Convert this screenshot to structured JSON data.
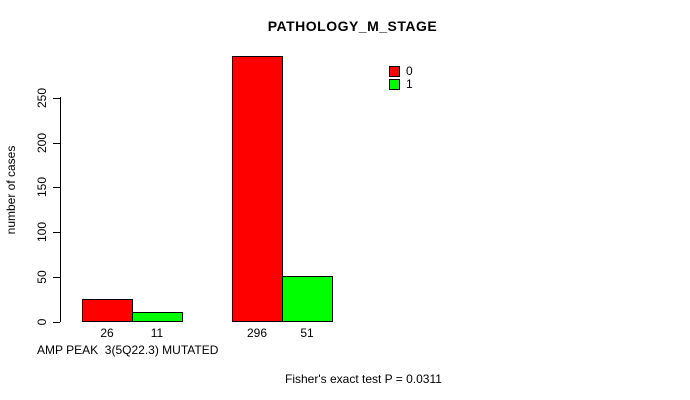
{
  "chart_data": {
    "type": "bar",
    "title": "PATHOLOGY_M_STAGE",
    "ylabel": "number of cases",
    "xlabel": "AMP PEAK  3(5Q22.3) MUTATED",
    "series": [
      {
        "name": "0",
        "color": "#ff0000",
        "values": [
          26,
          296
        ]
      },
      {
        "name": "1",
        "color": "#00ff00",
        "values": [
          11,
          51
        ]
      }
    ],
    "bar_value_labels": [
      "26",
      "11",
      "296",
      "51"
    ],
    "yticks": [
      0,
      50,
      100,
      150,
      200,
      250
    ],
    "ylim": [
      0,
      296
    ],
    "grid": false,
    "legend_position": "top-right",
    "legend": [
      {
        "label": "0",
        "color": "#ff0000"
      },
      {
        "label": "1",
        "color": "#00ff00"
      }
    ],
    "annotation": "Fisher's exact test P = 0.0311"
  }
}
